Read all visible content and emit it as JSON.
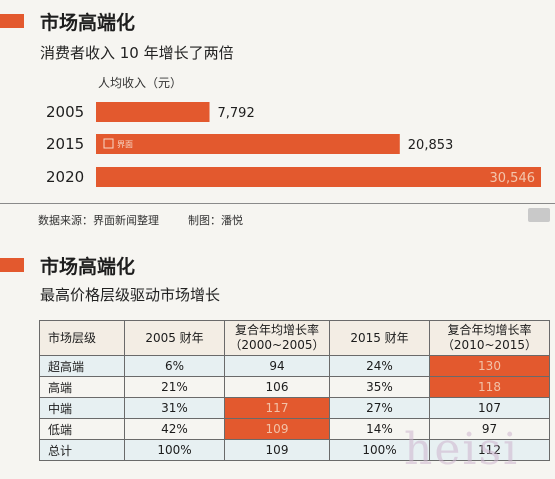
{
  "section1": {
    "title": "市场高端化",
    "subtitle": "消费者收入 10 年增长了两倍"
  },
  "chart_data": {
    "type": "bar",
    "orientation": "horizontal",
    "ylabel": "人均收入（元）",
    "categories": [
      "2005",
      "2015",
      "2020"
    ],
    "values": [
      7792,
      20853,
      30546
    ],
    "value_labels": [
      "7,792",
      "20,853",
      "30,546"
    ],
    "bar_color": "#e3592e"
  },
  "bar_logo_text": "界面",
  "footer": {
    "source": "数据来源：界面新闻整理",
    "credit": "制图：潘悦"
  },
  "section2": {
    "title": "市场高端化",
    "subtitle": "最高价格层级驱动市场增长"
  },
  "table": {
    "headers": [
      {
        "l1": "市场层级",
        "l2": ""
      },
      {
        "l1": "2005 财年",
        "l2": ""
      },
      {
        "l1": "复合年均增长率",
        "l2": "（2000~2005）"
      },
      {
        "l1": "2015 财年",
        "l2": ""
      },
      {
        "l1": "复合年均增长率",
        "l2": "（2010~2015）"
      }
    ],
    "rows": [
      {
        "cells": [
          "超高端",
          "6%",
          "94",
          "24%",
          "130"
        ],
        "highlight": [
          4
        ]
      },
      {
        "cells": [
          "高端",
          "21%",
          "106",
          "35%",
          "118"
        ],
        "highlight": [
          4
        ]
      },
      {
        "cells": [
          "中端",
          "31%",
          "117",
          "27%",
          "107"
        ],
        "highlight": [
          2
        ]
      },
      {
        "cells": [
          "低端",
          "42%",
          "109",
          "14%",
          "97"
        ],
        "highlight": [
          2
        ]
      },
      {
        "cells": [
          "总计",
          "100%",
          "109",
          "100%",
          "112"
        ],
        "highlight": []
      }
    ]
  },
  "watermark": "heisi",
  "colors": {
    "accent": "#e3592e",
    "row_alt": "#e7f0f2",
    "header_bg": "#f3ede4"
  }
}
